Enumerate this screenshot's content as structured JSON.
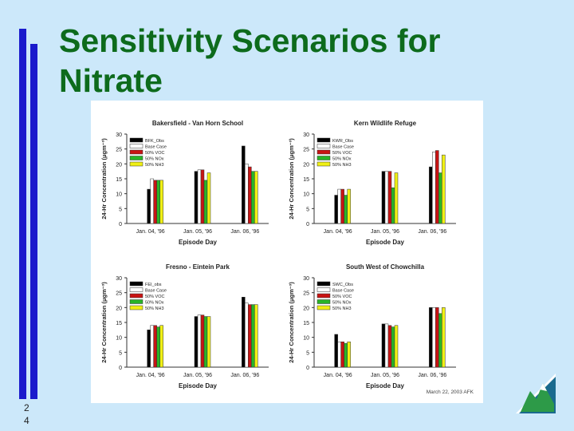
{
  "slide": {
    "title": "Sensitivity Scenarios for Nitrate",
    "page_number": "24",
    "footer_note": "March 22, 2003  AFK"
  },
  "colors": {
    "title": "#0d6b1c",
    "accent_bars": "#1a1acc",
    "background": "#cce8fa",
    "series": [
      "#000000",
      "#ffffff",
      "#c81414",
      "#28b428",
      "#f0f014"
    ]
  },
  "logo": {
    "icon": "mountain-logo-icon"
  },
  "chart_data": [
    {
      "type": "bar",
      "title": "Bakersfield - Van Horn School",
      "xlabel": "Episode Day",
      "ylabel": "24-Hr Concentration (μgm⁻³)",
      "ylim": [
        0,
        30
      ],
      "yticks": [
        0,
        5,
        10,
        15,
        20,
        25,
        30
      ],
      "categories": [
        "Jan. 04, '96",
        "Jan. 05, '96",
        "Jan. 06, '96"
      ],
      "series": [
        {
          "name": "BFK_Obs",
          "values": [
            11.5,
            17.5,
            26
          ]
        },
        {
          "name": "Base Case",
          "values": [
            15,
            18,
            20
          ]
        },
        {
          "name": "50% VOC",
          "values": [
            14.5,
            18,
            19
          ]
        },
        {
          "name": "50% NOx",
          "values": [
            14.5,
            14.5,
            17.5
          ]
        },
        {
          "name": "50% NH3",
          "values": [
            14.5,
            17,
            17.5
          ]
        }
      ]
    },
    {
      "type": "bar",
      "title": "Kern Wildlife Refuge",
      "xlabel": "Episode Day",
      "ylabel": "24-Hr Concentration (μgm⁻³)",
      "ylim": [
        0,
        30
      ],
      "yticks": [
        0,
        5,
        10,
        15,
        20,
        25,
        30
      ],
      "categories": [
        "Jan. 04, '96",
        "Jan. 05, '96",
        "Jan. 06, '96"
      ],
      "series": [
        {
          "name": "KWR_Obs",
          "values": [
            9.5,
            17.5,
            19
          ]
        },
        {
          "name": "Base Case",
          "values": [
            11.5,
            17.5,
            24
          ]
        },
        {
          "name": "50% VOC",
          "values": [
            11.5,
            17.5,
            24.5
          ]
        },
        {
          "name": "50% NOx",
          "values": [
            9.5,
            12,
            17
          ]
        },
        {
          "name": "50% NH3",
          "values": [
            11.5,
            17,
            23
          ]
        }
      ]
    },
    {
      "type": "bar",
      "title": "Fresno - Eintein Park",
      "xlabel": "Episode Day",
      "ylabel": "24-Hr Concentration (μgm⁻³)",
      "ylim": [
        0,
        30
      ],
      "yticks": [
        0,
        5,
        10,
        15,
        20,
        25,
        30
      ],
      "categories": [
        "Jan. 04, '96",
        "Jan. 05, '96",
        "Jan. 06, '96"
      ],
      "series": [
        {
          "name": "FEI_obs",
          "values": [
            12.5,
            17,
            23.5
          ]
        },
        {
          "name": "Base Case",
          "values": [
            14,
            17.5,
            21.5
          ]
        },
        {
          "name": "50% VOC",
          "values": [
            14,
            17.5,
            21
          ]
        },
        {
          "name": "50% NOx",
          "values": [
            13.5,
            17,
            21
          ]
        },
        {
          "name": "50% NH3",
          "values": [
            14,
            17,
            21
          ]
        }
      ]
    },
    {
      "type": "bar",
      "title": "South West of Chowchilla",
      "xlabel": "Episode Day",
      "ylabel": "24-Hr Concentration (μgm⁻³)",
      "ylim": [
        0,
        30
      ],
      "yticks": [
        0,
        5,
        10,
        15,
        20,
        25,
        30
      ],
      "categories": [
        "Jan. 04, '96",
        "Jan. 05, '96",
        "Jan. 06, '96"
      ],
      "series": [
        {
          "name": "SWC_Obs",
          "values": [
            11,
            14.5,
            20
          ]
        },
        {
          "name": "Base Case",
          "values": [
            8.5,
            14.5,
            20
          ]
        },
        {
          "name": "50% VOC",
          "values": [
            8.5,
            14,
            20
          ]
        },
        {
          "name": "50% NOx",
          "values": [
            8,
            13.5,
            18
          ]
        },
        {
          "name": "50% NH3",
          "values": [
            8.5,
            14,
            20
          ]
        }
      ]
    }
  ]
}
